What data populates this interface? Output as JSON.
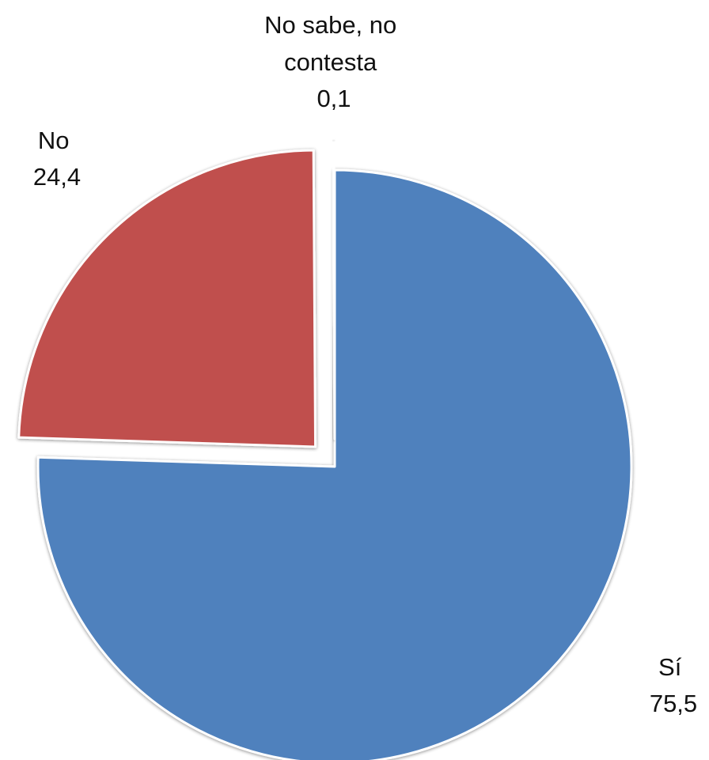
{
  "chart_data": {
    "type": "pie",
    "title": "",
    "slices": [
      {
        "label": "Sí",
        "value": 75.5,
        "display": "75,5",
        "color": "#4F81BD",
        "exploded": false
      },
      {
        "label": "No",
        "value": 24.4,
        "display": "24,4",
        "color": "#C0504D",
        "exploded": true
      },
      {
        "label": "No sabe, no contesta",
        "label_lines": [
          "No sabe, no",
          "contesta"
        ],
        "value": 0.1,
        "display": "0,1",
        "color": "#9BBB59",
        "exploded": true
      }
    ],
    "legend": "none",
    "start_angle": "12 o'clock, clockwise"
  }
}
